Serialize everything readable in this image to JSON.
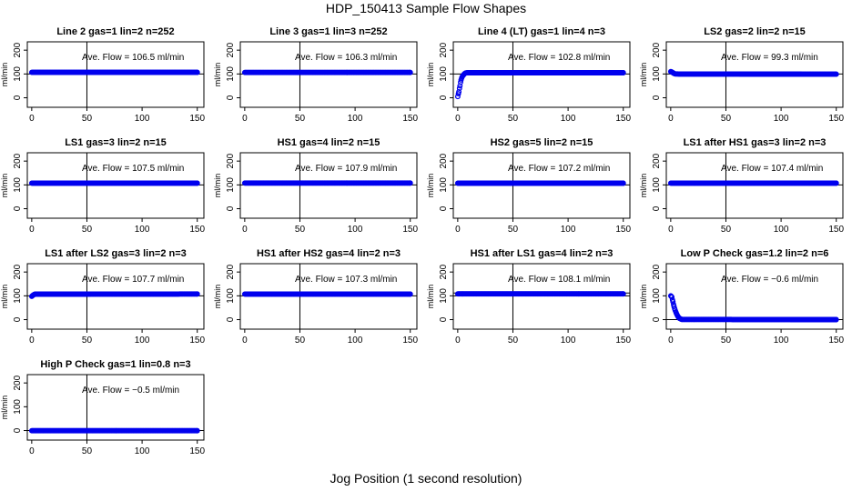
{
  "figure": {
    "title": "HDP_150413  Sample Flow Shapes",
    "xlabel": "Jog Position (1 second resolution)",
    "colors": {
      "points": "#0000ee",
      "axes": "#000000",
      "background": "#ffffff"
    }
  },
  "chart_data": [
    {
      "type": "scatter",
      "title": "Line 2 gas=1 lin=2 n=252",
      "ylabel": "ml/min",
      "xlim": [
        0,
        150
      ],
      "ylim": [
        0,
        200
      ],
      "xticks": [
        0,
        50,
        100,
        150
      ],
      "yticks": [
        0,
        100,
        200
      ],
      "hlines": [
        100
      ],
      "vlines": [
        50
      ],
      "annotation": "Ave. Flow =  106.5  ml/min",
      "series": [
        {
          "x": [
            0,
            150
          ],
          "y": [
            106.5,
            106.5
          ]
        }
      ]
    },
    {
      "type": "scatter",
      "title": "Line 3 gas=1 lin=3 n=252",
      "ylabel": "ml/min",
      "xlim": [
        0,
        150
      ],
      "ylim": [
        0,
        200
      ],
      "xticks": [
        0,
        50,
        100,
        150
      ],
      "yticks": [
        0,
        100,
        200
      ],
      "hlines": [
        100
      ],
      "vlines": [
        50
      ],
      "annotation": "Ave. Flow =  106.3  ml/min",
      "series": [
        {
          "x": [
            0,
            150
          ],
          "y": [
            106.3,
            106.3
          ]
        }
      ]
    },
    {
      "type": "scatter",
      "title": "Line 4 (LT) gas=1 lin=4 n=3",
      "ylabel": "ml/min",
      "xlim": [
        0,
        150
      ],
      "ylim": [
        0,
        200
      ],
      "xticks": [
        0,
        50,
        100,
        150
      ],
      "yticks": [
        0,
        100,
        200
      ],
      "hlines": [
        100
      ],
      "vlines": [
        50
      ],
      "annotation": "Ave. Flow =  102.8  ml/min",
      "series": [
        {
          "x": [
            0,
            1,
            2,
            3,
            4,
            5,
            6,
            7,
            9,
            150
          ],
          "y": [
            5,
            25,
            50,
            75,
            88,
            95,
            100,
            104,
            105,
            105
          ]
        }
      ]
    },
    {
      "type": "scatter",
      "title": "LS2 gas=2 lin=2 n=15",
      "ylabel": "ml/min",
      "xlim": [
        0,
        150
      ],
      "ylim": [
        0,
        200
      ],
      "xticks": [
        0,
        50,
        100,
        150
      ],
      "yticks": [
        0,
        100,
        200
      ],
      "hlines": [
        100
      ],
      "vlines": [
        50
      ],
      "annotation": "Ave. Flow =  99.3  ml/min",
      "series": [
        {
          "x": [
            0,
            1,
            2,
            3,
            4,
            150
          ],
          "y": [
            110,
            108,
            105,
            102,
            100,
            99
          ]
        }
      ]
    },
    {
      "type": "scatter",
      "title": "LS1 gas=3 lin=2 n=15",
      "ylabel": "ml/min",
      "xlim": [
        0,
        150
      ],
      "ylim": [
        0,
        200
      ],
      "xticks": [
        0,
        50,
        100,
        150
      ],
      "yticks": [
        0,
        100,
        200
      ],
      "hlines": [
        100
      ],
      "vlines": [
        50
      ],
      "annotation": "Ave. Flow =  107.5  ml/min",
      "series": [
        {
          "x": [
            0,
            150
          ],
          "y": [
            107.5,
            107.5
          ]
        }
      ]
    },
    {
      "type": "scatter",
      "title": "HS1 gas=4 lin=2 n=15",
      "ylabel": "ml/min",
      "xlim": [
        0,
        150
      ],
      "ylim": [
        0,
        200
      ],
      "xticks": [
        0,
        50,
        100,
        150
      ],
      "yticks": [
        0,
        100,
        200
      ],
      "hlines": [
        100
      ],
      "vlines": [
        50
      ],
      "annotation": "Ave. Flow =  107.9  ml/min",
      "series": [
        {
          "x": [
            0,
            150
          ],
          "y": [
            107.9,
            107.9
          ]
        }
      ]
    },
    {
      "type": "scatter",
      "title": "HS2 gas=5 lin=2 n=15",
      "ylabel": "ml/min",
      "xlim": [
        0,
        150
      ],
      "ylim": [
        0,
        200
      ],
      "xticks": [
        0,
        50,
        100,
        150
      ],
      "yticks": [
        0,
        100,
        200
      ],
      "hlines": [
        100
      ],
      "vlines": [
        50
      ],
      "annotation": "Ave. Flow =  107.2  ml/min",
      "series": [
        {
          "x": [
            0,
            150
          ],
          "y": [
            107.2,
            107.2
          ]
        }
      ]
    },
    {
      "type": "scatter",
      "title": "LS1 after HS1 gas=3 lin=2 n=3",
      "ylabel": "ml/min",
      "xlim": [
        0,
        150
      ],
      "ylim": [
        0,
        200
      ],
      "xticks": [
        0,
        50,
        100,
        150
      ],
      "yticks": [
        0,
        100,
        200
      ],
      "hlines": [
        100
      ],
      "vlines": [
        50
      ],
      "annotation": "Ave. Flow =  107.4  ml/min",
      "series": [
        {
          "x": [
            0,
            150
          ],
          "y": [
            107.4,
            107.4
          ]
        }
      ]
    },
    {
      "type": "scatter",
      "title": "LS1 after LS2 gas=3 lin=2 n=3",
      "ylabel": "ml/min",
      "xlim": [
        0,
        150
      ],
      "ylim": [
        0,
        200
      ],
      "xticks": [
        0,
        50,
        100,
        150
      ],
      "yticks": [
        0,
        100,
        200
      ],
      "hlines": [
        100
      ],
      "vlines": [
        50
      ],
      "annotation": "Ave. Flow =  107.7  ml/min",
      "series": [
        {
          "x": [
            0,
            1,
            2,
            3,
            150
          ],
          "y": [
            98,
            102,
            105,
            107,
            107.7
          ]
        }
      ]
    },
    {
      "type": "scatter",
      "title": "HS1 after HS2 gas=4 lin=2 n=3",
      "ylabel": "ml/min",
      "xlim": [
        0,
        150
      ],
      "ylim": [
        0,
        200
      ],
      "xticks": [
        0,
        50,
        100,
        150
      ],
      "yticks": [
        0,
        100,
        200
      ],
      "hlines": [
        100
      ],
      "vlines": [
        50
      ],
      "annotation": "Ave. Flow =  107.3  ml/min",
      "series": [
        {
          "x": [
            0,
            150
          ],
          "y": [
            107.3,
            107.3
          ]
        }
      ]
    },
    {
      "type": "scatter",
      "title": "HS1 after LS1 gas=4 lin=2 n=3",
      "ylabel": "ml/min",
      "xlim": [
        0,
        150
      ],
      "ylim": [
        0,
        200
      ],
      "xticks": [
        0,
        50,
        100,
        150
      ],
      "yticks": [
        0,
        100,
        200
      ],
      "hlines": [
        100,
        112
      ],
      "vlines": [
        50
      ],
      "annotation": "Ave. Flow =  108.1  ml/min",
      "series": [
        {
          "x": [
            0,
            150
          ],
          "y": [
            108.1,
            108.1
          ]
        }
      ]
    },
    {
      "type": "scatter",
      "title": "Low P Check gas=1.2 lin=2 n=6",
      "ylabel": "ml/min",
      "xlim": [
        0,
        150
      ],
      "ylim": [
        0,
        200
      ],
      "xticks": [
        0,
        50,
        100,
        150
      ],
      "yticks": [
        0,
        100,
        200
      ],
      "hlines": [
        0
      ],
      "vlines": [
        50
      ],
      "annotation": "Ave. Flow =  −0.6  ml/min",
      "series": [
        {
          "x": [
            0,
            1,
            2,
            3,
            4,
            5,
            6,
            7,
            8,
            10,
            150
          ],
          "y": [
            100,
            95,
            75,
            55,
            40,
            28,
            18,
            10,
            5,
            1,
            0
          ]
        }
      ]
    },
    {
      "type": "scatter",
      "title": "High P Check gas=1 lin=0.8 n=3",
      "ylabel": "ml/min",
      "xlim": [
        0,
        150
      ],
      "ylim": [
        0,
        200
      ],
      "xticks": [
        0,
        50,
        100,
        150
      ],
      "yticks": [
        0,
        100,
        200
      ],
      "hlines": [
        0
      ],
      "vlines": [
        50
      ],
      "annotation": "Ave. Flow =  −0.5  ml/min",
      "series": [
        {
          "x": [
            0,
            150
          ],
          "y": [
            -0.5,
            -0.5
          ]
        }
      ]
    }
  ]
}
